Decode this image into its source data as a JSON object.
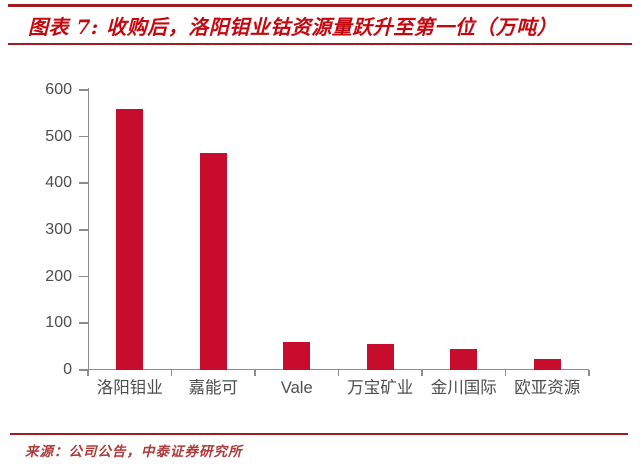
{
  "header": {
    "title": "图表 7: 收购后，洛阳钼业钴资源量跃升至第一位（万吨）"
  },
  "footer": {
    "source": "来源：公司公告，中泰证券研究所"
  },
  "colors": {
    "bar": "#C80C2E",
    "title_red": "#C40810",
    "rule_red": "#A01C20",
    "axis_line": "#8C8C8C",
    "axis_text": "#4D4D4D",
    "source_red": "#AC3B3B"
  },
  "chart_data": {
    "type": "bar",
    "title": "收购后，洛阳钼业钴资源量跃升至第一位（万吨）",
    "categories": [
      "洛阳钼业",
      "嘉能可",
      "Vale",
      "万宝矿业",
      "金川国际",
      "欧亚资源"
    ],
    "values": [
      560,
      465,
      60,
      55,
      45,
      23
    ],
    "xlabel": "",
    "ylabel": "",
    "unit": "万吨",
    "ylim": [
      0,
      600
    ],
    "yticks": [
      0,
      100,
      200,
      300,
      400,
      500,
      600
    ],
    "grid": false,
    "legend": null,
    "bar_color": "#C80C2E"
  }
}
